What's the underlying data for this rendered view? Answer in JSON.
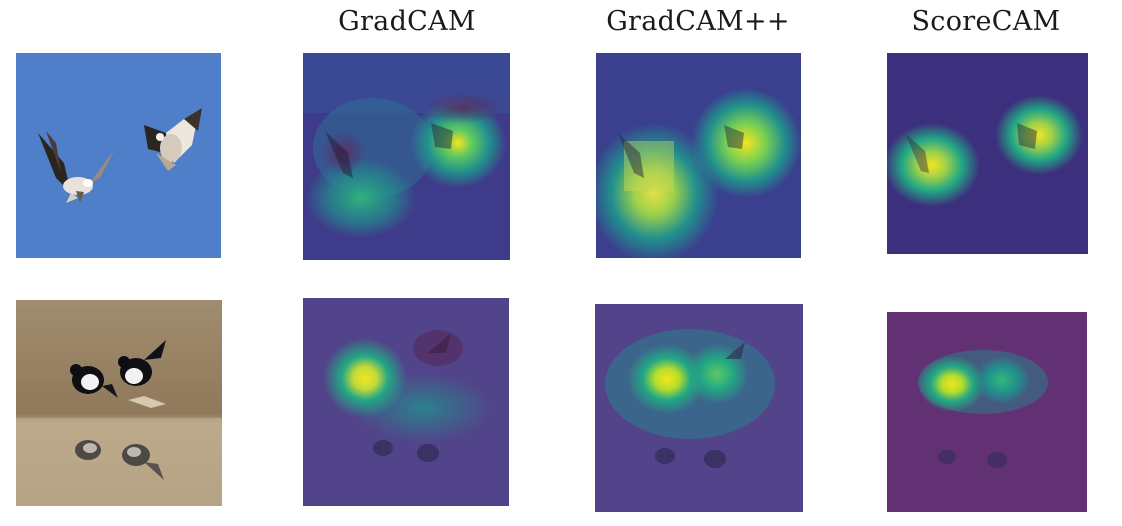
{
  "figure": {
    "column_titles": [
      "GradCAM",
      "GradCAM++",
      "ScoreCAM"
    ],
    "rows": [
      {
        "subject": "two birds of prey flying against a blue sky"
      },
      {
        "subject": "two magpies standing at the edge of water"
      }
    ],
    "colors": {
      "sky": "#4f7fc9",
      "heatmap_low": "#3b2877",
      "heatmap_mid": "#21908d",
      "heatmap_high": "#f3e51e"
    }
  }
}
